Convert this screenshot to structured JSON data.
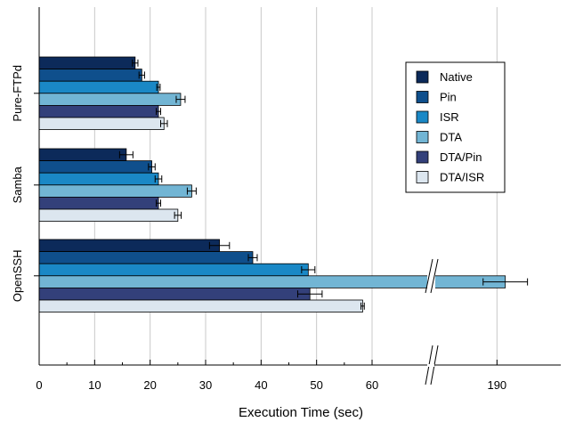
{
  "chart_data": {
    "type": "bar",
    "orientation": "horizontal",
    "xlabel": "Execution Time (sec)",
    "ylabel": "",
    "categories": [
      "Pure-FTPd",
      "Samba",
      "OpenSSH"
    ],
    "x_ticks": [
      "0",
      "10",
      "20",
      "30",
      "40",
      "50",
      "60",
      "190"
    ],
    "x_axis_break": {
      "from": 60,
      "to": 180
    },
    "grid": true,
    "legend_position": "top-right",
    "series": [
      {
        "name": "Native",
        "color": "#0c2a5a",
        "values": [
          17.3,
          15.7,
          32.5
        ],
        "errors": [
          0.5,
          1.2,
          1.8
        ]
      },
      {
        "name": "Pin",
        "color": "#0f4f8c",
        "values": [
          18.5,
          20.3,
          38.5
        ],
        "errors": [
          0.5,
          0.6,
          0.8
        ]
      },
      {
        "name": "ISR",
        "color": "#1a88c6",
        "values": [
          21.5,
          21.5,
          48.5
        ],
        "errors": [
          0.3,
          0.6,
          1.2
        ]
      },
      {
        "name": "DTA",
        "color": "#72b5d4",
        "values": [
          25.5,
          27.5,
          191.5
        ],
        "errors": [
          0.8,
          0.8,
          4.0
        ]
      },
      {
        "name": "DTA/Pin",
        "color": "#33407a",
        "values": [
          21.5,
          21.5,
          48.8
        ],
        "errors": [
          0.4,
          0.4,
          2.2
        ]
      },
      {
        "name": "DTA/ISR",
        "color": "#dce6ef",
        "values": [
          22.5,
          25.0,
          58.3
        ],
        "errors": [
          0.6,
          0.6,
          0.3
        ]
      }
    ]
  }
}
